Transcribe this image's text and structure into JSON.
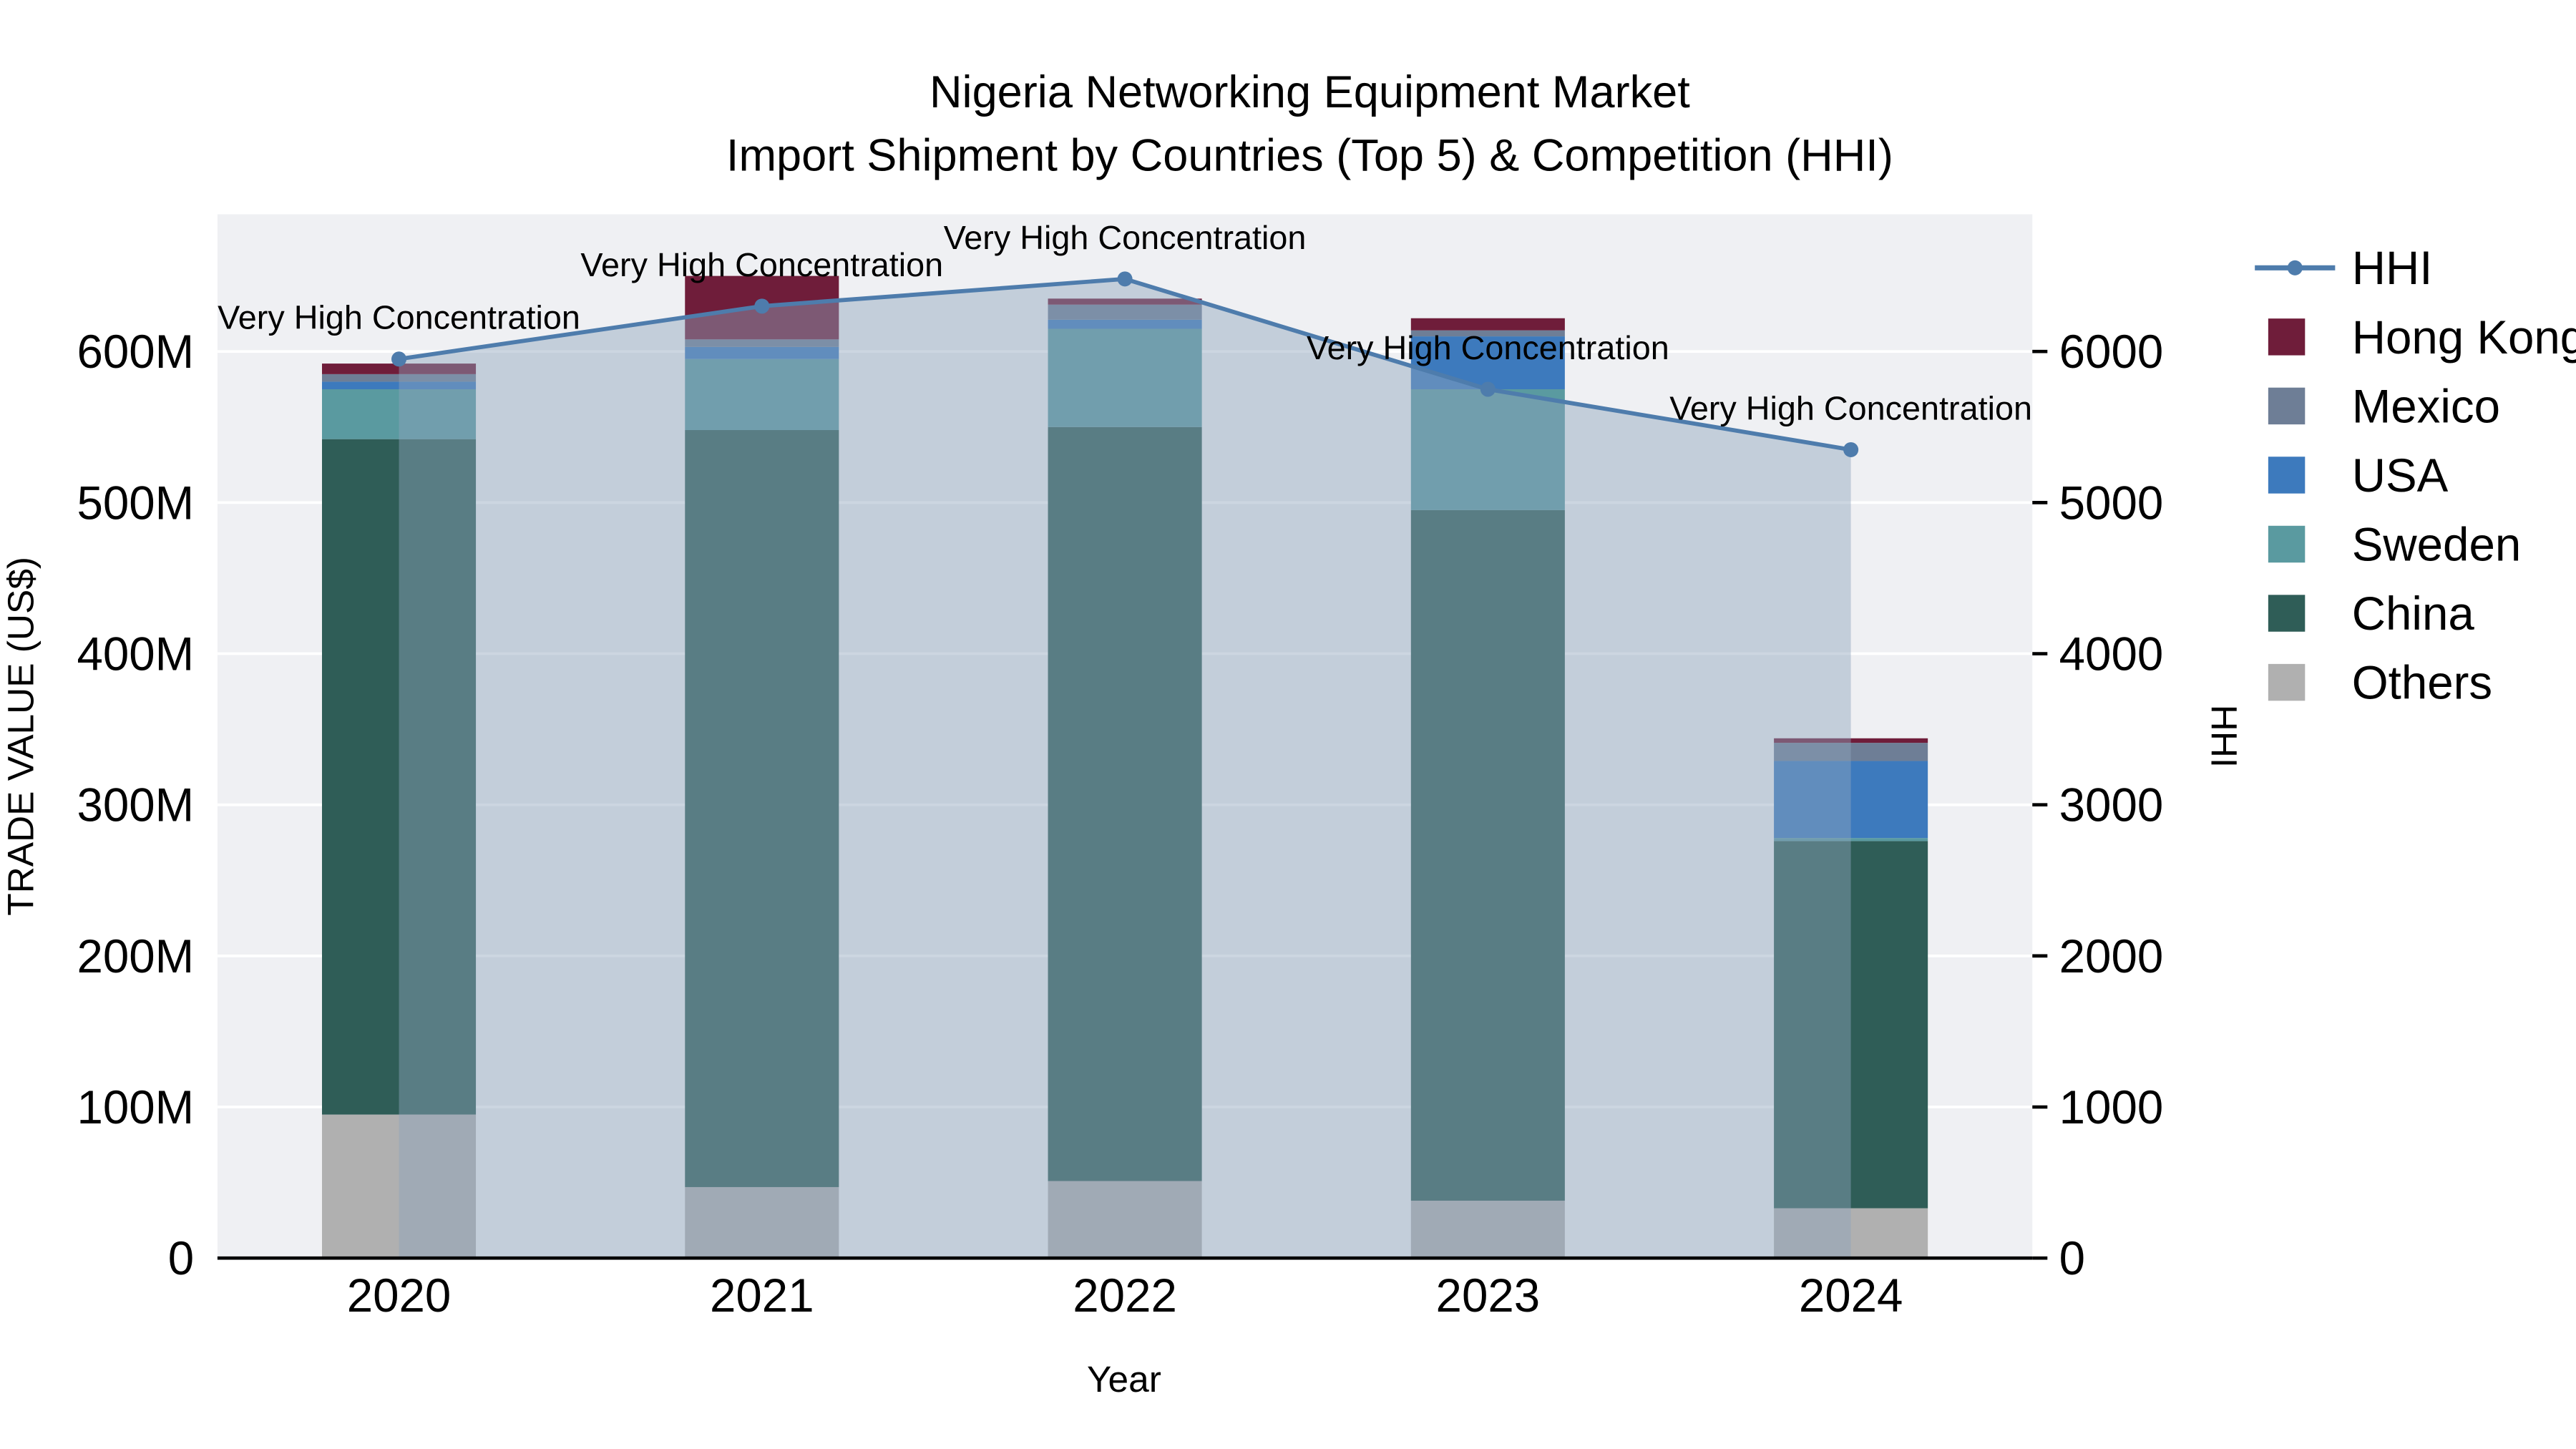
{
  "title": {
    "line1": "Nigeria Networking Equipment Market",
    "line2": "Import Shipment by Countries (Top 5) & Competition (HHI)"
  },
  "chart_data": {
    "type": "bar",
    "subtype": "stacked-bars-with-hhi-line-area",
    "title": "Nigeria Networking Equipment Market Import Shipment by Countries (Top 5) & Competition (HHI)",
    "xlabel": "Year",
    "ylabel_left": "TRADE VALUE (US$)",
    "ylabel_right": "HHI",
    "unit": "million US$",
    "categories": [
      "2020",
      "2021",
      "2022",
      "2023",
      "2024"
    ],
    "ylim_left": [
      0,
      600
    ],
    "ylim_right": [
      0,
      6000
    ],
    "yticks_left": [
      "0",
      "100M",
      "200M",
      "300M",
      "400M",
      "500M",
      "600M"
    ],
    "yticks_right": [
      "0",
      "1000",
      "2000",
      "3000",
      "4000",
      "5000",
      "6000"
    ],
    "bar_series": [
      {
        "name": "Others",
        "color": "#b0b0b0",
        "values": [
          95,
          47,
          51,
          38,
          33
        ]
      },
      {
        "name": "China",
        "color": "#2f5d57",
        "values": [
          447,
          501,
          499,
          457,
          243
        ]
      },
      {
        "name": "Sweden",
        "color": "#5a9aa0",
        "values": [
          33,
          47,
          65,
          80,
          2
        ]
      },
      {
        "name": "USA",
        "color": "#3d7abd",
        "values": [
          5,
          8,
          6,
          35,
          51
        ]
      },
      {
        "name": "Mexico",
        "color": "#6e7e96",
        "values": [
          5,
          5,
          10,
          4,
          12
        ]
      },
      {
        "name": "Hong Kong",
        "color": "#6f1d3a",
        "values": [
          7,
          42,
          4,
          8,
          3
        ]
      }
    ],
    "line_series": {
      "name": "HHI",
      "values": [
        5950,
        6300,
        6480,
        5750,
        5350
      ],
      "color": "#4e7cac",
      "fill": "#8fa3bd",
      "fill_opacity": 0.45
    },
    "annotations": [
      "Very High Concentration",
      "Very High Concentration",
      "Very High Concentration",
      "Very High Concentration",
      "Very High Concentration"
    ],
    "legend": [
      {
        "label": "HHI",
        "type": "line",
        "color": "#4e7cac"
      },
      {
        "label": "Hong Kong",
        "type": "square",
        "color": "#6f1d3a"
      },
      {
        "label": "Mexico",
        "type": "square",
        "color": "#6e7e96"
      },
      {
        "label": "USA",
        "type": "square",
        "color": "#3d7abd"
      },
      {
        "label": "Sweden",
        "type": "square",
        "color": "#5a9aa0"
      },
      {
        "label": "China",
        "type": "square",
        "color": "#2f5d57"
      },
      {
        "label": "Others",
        "type": "square",
        "color": "#b0b0b0"
      }
    ],
    "colors": {
      "plot_bg": "#eff0f3",
      "grid": "#ffffff",
      "axis_line": "#000000"
    }
  }
}
